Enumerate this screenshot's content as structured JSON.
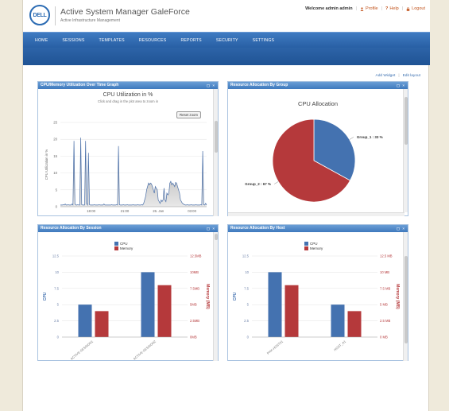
{
  "app": {
    "logo_text": "DELL",
    "title": "Active System Manager GaleForce",
    "subtitle": "Active Infrastructure Management"
  },
  "userbar": {
    "welcome": "Welcome admin admin",
    "profile": "Profile",
    "help": "Help",
    "logout": "Logout"
  },
  "nav": {
    "items": [
      "HOME",
      "SESSIONS",
      "TEMPLATES",
      "RESOURCES",
      "REPORTS",
      "SECURITY",
      "SETTINGS"
    ]
  },
  "links": {
    "add_widget": "Add Widget",
    "sep": "|",
    "edit_layout": "Edit layout"
  },
  "colors": {
    "cpu": "#4472b0",
    "memory": "#b5393b",
    "nav": "#2f68ad"
  },
  "widgets": {
    "cpu_util": {
      "header": "CPU/Memory Utilization Over Time Graph",
      "tools": "▢ ×",
      "chart_title": "CPU Utilization in %",
      "chart_subtitle": "Click and drag in the plot area to zoom in",
      "reset_label": "Reset zoom",
      "ylabel": "CPU Utilization in %",
      "yticks": [
        "25",
        "20",
        "15",
        "10",
        "5",
        "0"
      ],
      "xticks": [
        "18:00",
        "21:00",
        "26. Jan",
        "03:00"
      ]
    },
    "alloc_group": {
      "header": "Resource Allocation By Group",
      "tools": "▢ ×",
      "chart_title": "CPU Allocation",
      "slices": [
        {
          "label": "Group_1 : 33 %",
          "value": 33
        },
        {
          "label": "Group_2 : 67 %",
          "value": 67
        }
      ]
    },
    "alloc_session": {
      "header": "Resource Allocation By Session",
      "tools": "▢ ×",
      "legend": [
        "CPU",
        "Memory"
      ],
      "ylabel_left": "CPU",
      "ylabel_right": "Memory (MB)",
      "yticks_left": [
        "12.5",
        "10",
        "7.5",
        "5",
        "2.5",
        "0"
      ],
      "yticks_right": [
        "12.5MB",
        "10MB",
        "7.5MB",
        "5MB",
        "2.5MB",
        "0MB"
      ],
      "categories": [
        "ACTIVE-SESSION1",
        "ACTIVE-SESSION2"
      ]
    },
    "alloc_host": {
      "header": "Resource Allocation By Host",
      "tools": "▢ ×",
      "legend": [
        "CPU",
        "Memory"
      ],
      "ylabel_left": "CPU",
      "ylabel_right": "Memory (MB)",
      "yticks_left": [
        "12.5",
        "10",
        "7.5",
        "5",
        "2.5",
        "0"
      ],
      "yticks_right": [
        "12.5 MB",
        "10 MB",
        "7.5 MB",
        "5 MB",
        "2.5 MB",
        "0 MB"
      ],
      "categories": [
        "PHX-HOST01",
        "HOST_A1"
      ]
    }
  },
  "chart_data": [
    {
      "type": "area",
      "title": "CPU Utilization in %",
      "ylabel": "CPU Utilization in %",
      "ylim": [
        0,
        25
      ],
      "xticks": [
        "18:00",
        "21:00",
        "26. Jan",
        "03:00"
      ],
      "values": [
        0.5,
        0.5,
        0.5,
        0.6,
        0.5,
        0.8,
        0.5,
        0.5,
        0.6,
        0.5,
        0.5,
        0.5,
        0.8,
        0.5,
        19.5,
        0.8,
        0.5,
        0.5,
        0.6,
        0.5,
        0.5,
        20.5,
        0.6,
        0.5,
        0.5,
        0.5,
        19.5,
        1,
        0.5,
        16,
        0.6,
        0.5,
        0.5,
        0.5,
        0.5,
        0.6,
        0.5,
        0.5,
        0.5,
        0.5,
        0.6,
        0.5,
        0.5,
        0.5,
        0.5,
        0.8,
        0.5,
        0.5,
        0.5,
        0.5,
        0.5,
        0.5,
        0.5,
        0.6,
        0.5,
        0.5,
        0.5,
        0.5,
        0.6,
        0.5,
        18,
        0.6,
        0.5,
        0.5,
        0.5,
        0.6,
        0.5,
        0.5,
        0.5,
        0.6,
        0.5,
        0.5,
        0.5,
        0.5,
        0.5,
        0.6,
        0.5,
        0.5,
        0.5,
        0.5,
        0.6,
        0.5,
        0.5,
        0.5,
        0.6,
        0.5,
        1,
        2,
        3,
        5,
        6,
        7,
        6.5,
        7,
        6.8,
        6,
        5,
        4,
        6,
        5.5,
        5,
        2,
        1.5,
        1,
        2,
        1.5,
        2,
        5.5,
        2,
        1.5,
        4,
        3.5,
        4,
        7,
        7.5,
        6.5,
        7,
        6.5,
        6,
        7.2,
        7,
        6,
        5,
        4,
        2,
        1.5,
        1,
        0.8,
        0.6,
        0.5,
        0.5,
        0.6,
        0.5,
        0.5,
        0.5,
        0.6,
        0.5,
        0.5,
        0.5,
        0.5,
        0.6,
        0.5,
        0.5,
        0.5,
        0.5,
        0.6,
        0.5,
        16.5,
        0.6,
        0.5,
        1,
        0.5
      ]
    },
    {
      "type": "pie",
      "title": "CPU Allocation",
      "categories": [
        "Group_1",
        "Group_2"
      ],
      "values": [
        33,
        67
      ]
    },
    {
      "type": "bar",
      "categories": [
        "ACTIVE-SESSION1",
        "ACTIVE-SESSION2"
      ],
      "series": [
        {
          "name": "CPU",
          "values": [
            5,
            10
          ]
        },
        {
          "name": "Memory",
          "values": [
            4,
            8
          ]
        }
      ],
      "ylabel": "CPU",
      "ylim": [
        0,
        12.5
      ]
    },
    {
      "type": "bar",
      "categories": [
        "PHX-HOST01",
        "HOST_A1"
      ],
      "series": [
        {
          "name": "CPU",
          "values": [
            10,
            5
          ]
        },
        {
          "name": "Memory",
          "values": [
            8,
            4
          ]
        }
      ],
      "ylabel": "CPU",
      "ylim": [
        0,
        12.5
      ]
    }
  ]
}
